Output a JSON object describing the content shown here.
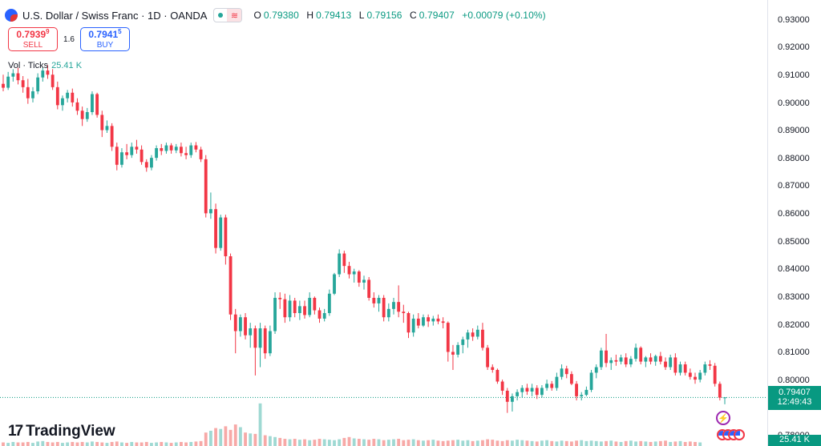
{
  "header": {
    "title": "U.S. Dollar / Swiss Franc · 1D · OANDA",
    "ohlc": [
      {
        "k": "O",
        "v": "0.79380"
      },
      {
        "k": "H",
        "v": "0.79413"
      },
      {
        "k": "L",
        "v": "0.79156"
      },
      {
        "k": "C",
        "v": "0.79407"
      }
    ],
    "change": "+0.00079 (+0.10%)"
  },
  "trade": {
    "sell_price_main": "0.7939",
    "sell_price_sup": "9",
    "sell_label": "SELL",
    "spread": "1.6",
    "buy_price_main": "0.7941",
    "buy_price_sup": "5",
    "buy_label": "BUY"
  },
  "volume": {
    "label": "Vol · Ticks",
    "value": "25.41 K"
  },
  "price_axis": {
    "ticks": [
      "0.93000",
      "0.92000",
      "0.91000",
      "0.90000",
      "0.89000",
      "0.88000",
      "0.87000",
      "0.86000",
      "0.85000",
      "0.84000",
      "0.83000",
      "0.82000",
      "0.81000",
      "0.80000",
      "0.78000"
    ],
    "last_price": "0.79407",
    "countdown": "12:49:43",
    "volume_label": "25.41 K"
  },
  "brand": {
    "name": "TradingView",
    "mark": "17"
  },
  "colors": {
    "up": "#26a69a",
    "down": "#f23645",
    "up_vol": "#9fd9d3",
    "down_vol": "#f7a9a7",
    "last_line": "#089981"
  },
  "chart_data": {
    "type": "candlestick",
    "ylim": [
      0.778,
      0.936
    ],
    "last_price": 0.79407,
    "candles": [
      {
        "o": 0.9072,
        "h": 0.9105,
        "l": 0.9045,
        "c": 0.9058
      },
      {
        "o": 0.9058,
        "h": 0.9115,
        "l": 0.905,
        "c": 0.9098
      },
      {
        "o": 0.9098,
        "h": 0.9125,
        "l": 0.908,
        "c": 0.911
      },
      {
        "o": 0.911,
        "h": 0.913,
        "l": 0.907,
        "c": 0.9085
      },
      {
        "o": 0.9085,
        "h": 0.91,
        "l": 0.904,
        "c": 0.906
      },
      {
        "o": 0.906,
        "h": 0.909,
        "l": 0.9,
        "c": 0.902
      },
      {
        "o": 0.902,
        "h": 0.906,
        "l": 0.9005,
        "c": 0.9045
      },
      {
        "o": 0.9045,
        "h": 0.911,
        "l": 0.9035,
        "c": 0.9095
      },
      {
        "o": 0.9095,
        "h": 0.913,
        "l": 0.908,
        "c": 0.912
      },
      {
        "o": 0.912,
        "h": 0.914,
        "l": 0.909,
        "c": 0.9105
      },
      {
        "o": 0.9105,
        "h": 0.9125,
        "l": 0.905,
        "c": 0.906
      },
      {
        "o": 0.906,
        "h": 0.908,
        "l": 0.898,
        "c": 0.8995
      },
      {
        "o": 0.8995,
        "h": 0.903,
        "l": 0.8975,
        "c": 0.902
      },
      {
        "o": 0.902,
        "h": 0.905,
        "l": 0.9005,
        "c": 0.904
      },
      {
        "o": 0.904,
        "h": 0.9055,
        "l": 0.899,
        "c": 0.9005
      },
      {
        "o": 0.9005,
        "h": 0.902,
        "l": 0.896,
        "c": 0.8975
      },
      {
        "o": 0.8975,
        "h": 0.899,
        "l": 0.892,
        "c": 0.8945
      },
      {
        "o": 0.8945,
        "h": 0.8985,
        "l": 0.8935,
        "c": 0.897
      },
      {
        "o": 0.897,
        "h": 0.9045,
        "l": 0.896,
        "c": 0.9035
      },
      {
        "o": 0.9035,
        "h": 0.904,
        "l": 0.895,
        "c": 0.896
      },
      {
        "o": 0.896,
        "h": 0.8975,
        "l": 0.888,
        "c": 0.8905
      },
      {
        "o": 0.8905,
        "h": 0.894,
        "l": 0.8895,
        "c": 0.892
      },
      {
        "o": 0.892,
        "h": 0.893,
        "l": 0.883,
        "c": 0.8845
      },
      {
        "o": 0.8845,
        "h": 0.886,
        "l": 0.876,
        "c": 0.878
      },
      {
        "o": 0.878,
        "h": 0.884,
        "l": 0.877,
        "c": 0.8825
      },
      {
        "o": 0.8825,
        "h": 0.8855,
        "l": 0.88,
        "c": 0.8815
      },
      {
        "o": 0.8815,
        "h": 0.886,
        "l": 0.8805,
        "c": 0.8845
      },
      {
        "o": 0.8845,
        "h": 0.887,
        "l": 0.882,
        "c": 0.8835
      },
      {
        "o": 0.8835,
        "h": 0.885,
        "l": 0.878,
        "c": 0.879
      },
      {
        "o": 0.879,
        "h": 0.88,
        "l": 0.8755,
        "c": 0.877
      },
      {
        "o": 0.877,
        "h": 0.8815,
        "l": 0.876,
        "c": 0.8805
      },
      {
        "o": 0.8805,
        "h": 0.885,
        "l": 0.8795,
        "c": 0.884
      },
      {
        "o": 0.884,
        "h": 0.8855,
        "l": 0.8815,
        "c": 0.883
      },
      {
        "o": 0.883,
        "h": 0.886,
        "l": 0.882,
        "c": 0.885
      },
      {
        "o": 0.885,
        "h": 0.8858,
        "l": 0.882,
        "c": 0.8832
      },
      {
        "o": 0.8832,
        "h": 0.8855,
        "l": 0.8822,
        "c": 0.8845
      },
      {
        "o": 0.8845,
        "h": 0.886,
        "l": 0.881,
        "c": 0.8822
      },
      {
        "o": 0.8822,
        "h": 0.8845,
        "l": 0.88,
        "c": 0.8815
      },
      {
        "o": 0.8815,
        "h": 0.886,
        "l": 0.8805,
        "c": 0.885
      },
      {
        "o": 0.885,
        "h": 0.8862,
        "l": 0.8825,
        "c": 0.8835
      },
      {
        "o": 0.8835,
        "h": 0.8845,
        "l": 0.879,
        "c": 0.88
      },
      {
        "o": 0.88,
        "h": 0.8815,
        "l": 0.859,
        "c": 0.8605
      },
      {
        "o": 0.8605,
        "h": 0.868,
        "l": 0.8585,
        "c": 0.862
      },
      {
        "o": 0.862,
        "h": 0.864,
        "l": 0.846,
        "c": 0.848
      },
      {
        "o": 0.848,
        "h": 0.86,
        "l": 0.847,
        "c": 0.859
      },
      {
        "o": 0.859,
        "h": 0.86,
        "l": 0.842,
        "c": 0.845
      },
      {
        "o": 0.845,
        "h": 0.846,
        "l": 0.822,
        "c": 0.824
      },
      {
        "o": 0.824,
        "h": 0.826,
        "l": 0.81,
        "c": 0.818
      },
      {
        "o": 0.818,
        "h": 0.824,
        "l": 0.816,
        "c": 0.823
      },
      {
        "o": 0.823,
        "h": 0.8245,
        "l": 0.815,
        "c": 0.8165
      },
      {
        "o": 0.8165,
        "h": 0.821,
        "l": 0.812,
        "c": 0.819
      },
      {
        "o": 0.819,
        "h": 0.82,
        "l": 0.802,
        "c": 0.812
      },
      {
        "o": 0.812,
        "h": 0.821,
        "l": 0.805,
        "c": 0.819
      },
      {
        "o": 0.819,
        "h": 0.82,
        "l": 0.808,
        "c": 0.81
      },
      {
        "o": 0.81,
        "h": 0.82,
        "l": 0.809,
        "c": 0.818
      },
      {
        "o": 0.818,
        "h": 0.832,
        "l": 0.817,
        "c": 0.83
      },
      {
        "o": 0.83,
        "h": 0.832,
        "l": 0.826,
        "c": 0.8295
      },
      {
        "o": 0.8295,
        "h": 0.8315,
        "l": 0.821,
        "c": 0.823
      },
      {
        "o": 0.823,
        "h": 0.831,
        "l": 0.8215,
        "c": 0.829
      },
      {
        "o": 0.829,
        "h": 0.83,
        "l": 0.823,
        "c": 0.8245
      },
      {
        "o": 0.8245,
        "h": 0.829,
        "l": 0.822,
        "c": 0.827
      },
      {
        "o": 0.827,
        "h": 0.829,
        "l": 0.8225,
        "c": 0.8238
      },
      {
        "o": 0.8238,
        "h": 0.832,
        "l": 0.823,
        "c": 0.83
      },
      {
        "o": 0.83,
        "h": 0.8305,
        "l": 0.824,
        "c": 0.8255
      },
      {
        "o": 0.8255,
        "h": 0.8265,
        "l": 0.821,
        "c": 0.8225
      },
      {
        "o": 0.8225,
        "h": 0.826,
        "l": 0.8215,
        "c": 0.8245
      },
      {
        "o": 0.8245,
        "h": 0.833,
        "l": 0.8235,
        "c": 0.8315
      },
      {
        "o": 0.8315,
        "h": 0.839,
        "l": 0.831,
        "c": 0.8385
      },
      {
        "o": 0.8385,
        "h": 0.8475,
        "l": 0.8375,
        "c": 0.846
      },
      {
        "o": 0.846,
        "h": 0.847,
        "l": 0.839,
        "c": 0.8415
      },
      {
        "o": 0.8415,
        "h": 0.843,
        "l": 0.837,
        "c": 0.8385
      },
      {
        "o": 0.8385,
        "h": 0.8405,
        "l": 0.8355,
        "c": 0.8395
      },
      {
        "o": 0.8395,
        "h": 0.84,
        "l": 0.834,
        "c": 0.8355
      },
      {
        "o": 0.8355,
        "h": 0.838,
        "l": 0.833,
        "c": 0.8365
      },
      {
        "o": 0.8365,
        "h": 0.8375,
        "l": 0.829,
        "c": 0.83
      },
      {
        "o": 0.83,
        "h": 0.832,
        "l": 0.8265,
        "c": 0.828
      },
      {
        "o": 0.828,
        "h": 0.831,
        "l": 0.825,
        "c": 0.83
      },
      {
        "o": 0.83,
        "h": 0.831,
        "l": 0.8215,
        "c": 0.823
      },
      {
        "o": 0.823,
        "h": 0.828,
        "l": 0.8215,
        "c": 0.826
      },
      {
        "o": 0.826,
        "h": 0.83,
        "l": 0.824,
        "c": 0.8285
      },
      {
        "o": 0.8285,
        "h": 0.8345,
        "l": 0.823,
        "c": 0.825
      },
      {
        "o": 0.825,
        "h": 0.8275,
        "l": 0.821,
        "c": 0.8245
      },
      {
        "o": 0.8245,
        "h": 0.825,
        "l": 0.8155,
        "c": 0.8175
      },
      {
        "o": 0.8175,
        "h": 0.824,
        "l": 0.816,
        "c": 0.8225
      },
      {
        "o": 0.8225,
        "h": 0.8245,
        "l": 0.819,
        "c": 0.82
      },
      {
        "o": 0.82,
        "h": 0.824,
        "l": 0.8195,
        "c": 0.823
      },
      {
        "o": 0.823,
        "h": 0.824,
        "l": 0.8195,
        "c": 0.8215
      },
      {
        "o": 0.8215,
        "h": 0.8235,
        "l": 0.82,
        "c": 0.8225
      },
      {
        "o": 0.8225,
        "h": 0.824,
        "l": 0.8205,
        "c": 0.8215
      },
      {
        "o": 0.8215,
        "h": 0.823,
        "l": 0.819,
        "c": 0.821
      },
      {
        "o": 0.821,
        "h": 0.8215,
        "l": 0.807,
        "c": 0.8105
      },
      {
        "o": 0.8105,
        "h": 0.813,
        "l": 0.804,
        "c": 0.8095
      },
      {
        "o": 0.8095,
        "h": 0.814,
        "l": 0.8085,
        "c": 0.813
      },
      {
        "o": 0.813,
        "h": 0.816,
        "l": 0.81,
        "c": 0.815
      },
      {
        "o": 0.815,
        "h": 0.8185,
        "l": 0.812,
        "c": 0.8175
      },
      {
        "o": 0.8175,
        "h": 0.819,
        "l": 0.8145,
        "c": 0.816
      },
      {
        "o": 0.816,
        "h": 0.82,
        "l": 0.815,
        "c": 0.8185
      },
      {
        "o": 0.8185,
        "h": 0.821,
        "l": 0.811,
        "c": 0.812
      },
      {
        "o": 0.812,
        "h": 0.813,
        "l": 0.804,
        "c": 0.805
      },
      {
        "o": 0.805,
        "h": 0.806,
        "l": 0.803,
        "c": 0.804
      },
      {
        "o": 0.804,
        "h": 0.8045,
        "l": 0.799,
        "c": 0.7998
      },
      {
        "o": 0.7998,
        "h": 0.8005,
        "l": 0.795,
        "c": 0.7965
      },
      {
        "o": 0.7965,
        "h": 0.7975,
        "l": 0.7885,
        "c": 0.7925
      },
      {
        "o": 0.7925,
        "h": 0.7955,
        "l": 0.789,
        "c": 0.7945
      },
      {
        "o": 0.7945,
        "h": 0.797,
        "l": 0.793,
        "c": 0.796
      },
      {
        "o": 0.796,
        "h": 0.7985,
        "l": 0.794,
        "c": 0.7975
      },
      {
        "o": 0.7975,
        "h": 0.799,
        "l": 0.795,
        "c": 0.7962
      },
      {
        "o": 0.7962,
        "h": 0.799,
        "l": 0.7945,
        "c": 0.7975
      },
      {
        "o": 0.7975,
        "h": 0.7985,
        "l": 0.7935,
        "c": 0.795
      },
      {
        "o": 0.795,
        "h": 0.7985,
        "l": 0.794,
        "c": 0.7975
      },
      {
        "o": 0.7975,
        "h": 0.8005,
        "l": 0.7965,
        "c": 0.799
      },
      {
        "o": 0.799,
        "h": 0.8,
        "l": 0.7965,
        "c": 0.7975
      },
      {
        "o": 0.7975,
        "h": 0.803,
        "l": 0.7965,
        "c": 0.8015
      },
      {
        "o": 0.8015,
        "h": 0.806,
        "l": 0.8005,
        "c": 0.8045
      },
      {
        "o": 0.8045,
        "h": 0.8055,
        "l": 0.801,
        "c": 0.8025
      },
      {
        "o": 0.8025,
        "h": 0.8035,
        "l": 0.7985,
        "c": 0.799
      },
      {
        "o": 0.799,
        "h": 0.8,
        "l": 0.793,
        "c": 0.7945
      },
      {
        "o": 0.7945,
        "h": 0.796,
        "l": 0.793,
        "c": 0.795
      },
      {
        "o": 0.795,
        "h": 0.798,
        "l": 0.7945,
        "c": 0.7968
      },
      {
        "o": 0.7968,
        "h": 0.804,
        "l": 0.796,
        "c": 0.803
      },
      {
        "o": 0.803,
        "h": 0.806,
        "l": 0.801,
        "c": 0.805
      },
      {
        "o": 0.805,
        "h": 0.812,
        "l": 0.804,
        "c": 0.811
      },
      {
        "o": 0.811,
        "h": 0.817,
        "l": 0.805,
        "c": 0.8065
      },
      {
        "o": 0.8065,
        "h": 0.8085,
        "l": 0.804,
        "c": 0.8075
      },
      {
        "o": 0.8075,
        "h": 0.8095,
        "l": 0.8055,
        "c": 0.807
      },
      {
        "o": 0.807,
        "h": 0.8095,
        "l": 0.806,
        "c": 0.8085
      },
      {
        "o": 0.8085,
        "h": 0.81,
        "l": 0.805,
        "c": 0.806
      },
      {
        "o": 0.806,
        "h": 0.809,
        "l": 0.805,
        "c": 0.808
      },
      {
        "o": 0.808,
        "h": 0.8135,
        "l": 0.807,
        "c": 0.812
      },
      {
        "o": 0.812,
        "h": 0.8125,
        "l": 0.806,
        "c": 0.807
      },
      {
        "o": 0.807,
        "h": 0.809,
        "l": 0.805,
        "c": 0.8085
      },
      {
        "o": 0.8085,
        "h": 0.81,
        "l": 0.806,
        "c": 0.807
      },
      {
        "o": 0.807,
        "h": 0.8095,
        "l": 0.8055,
        "c": 0.809
      },
      {
        "o": 0.809,
        "h": 0.8105,
        "l": 0.806,
        "c": 0.807
      },
      {
        "o": 0.807,
        "h": 0.8085,
        "l": 0.804,
        "c": 0.805
      },
      {
        "o": 0.805,
        "h": 0.8095,
        "l": 0.804,
        "c": 0.8085
      },
      {
        "o": 0.8085,
        "h": 0.81,
        "l": 0.802,
        "c": 0.803
      },
      {
        "o": 0.803,
        "h": 0.807,
        "l": 0.802,
        "c": 0.806
      },
      {
        "o": 0.806,
        "h": 0.807,
        "l": 0.802,
        "c": 0.803
      },
      {
        "o": 0.803,
        "h": 0.8045,
        "l": 0.8005,
        "c": 0.8015
      },
      {
        "o": 0.8015,
        "h": 0.803,
        "l": 0.799,
        "c": 0.8005
      },
      {
        "o": 0.8005,
        "h": 0.804,
        "l": 0.7995,
        "c": 0.803
      },
      {
        "o": 0.803,
        "h": 0.807,
        "l": 0.802,
        "c": 0.806
      },
      {
        "o": 0.806,
        "h": 0.8075,
        "l": 0.804,
        "c": 0.8055
      },
      {
        "o": 0.8055,
        "h": 0.8065,
        "l": 0.798,
        "c": 0.799
      },
      {
        "o": 0.799,
        "h": 0.7998,
        "l": 0.793,
        "c": 0.794
      },
      {
        "o": 0.7938,
        "h": 0.7941,
        "l": 0.7916,
        "c": 0.7941
      }
    ],
    "volumes": [
      8,
      7,
      9,
      8,
      8,
      9,
      7,
      10,
      11,
      9,
      8,
      9,
      7,
      8,
      9,
      8,
      9,
      8,
      10,
      9,
      8,
      7,
      9,
      10,
      8,
      7,
      9,
      8,
      8,
      9,
      7,
      8,
      9,
      8,
      7,
      8,
      9,
      8,
      9,
      10,
      11,
      30,
      34,
      40,
      38,
      44,
      36,
      48,
      42,
      30,
      28,
      27,
      95,
      24,
      22,
      20,
      18,
      16,
      15,
      16,
      14,
      15,
      13,
      14,
      16,
      15,
      14,
      13,
      15,
      18,
      20,
      17,
      16,
      15,
      14,
      16,
      15,
      13,
      14,
      15,
      16,
      13,
      14,
      15,
      13,
      12,
      13,
      14,
      12,
      11,
      12,
      13,
      14,
      12,
      13,
      11,
      12,
      13,
      15,
      14,
      12,
      11,
      13,
      12,
      14,
      13,
      12,
      11,
      10,
      12,
      13,
      11,
      10,
      12,
      11,
      10,
      12,
      13,
      11,
      12,
      11,
      10,
      11,
      12,
      10,
      9,
      11,
      12,
      10,
      11,
      10,
      9,
      10,
      11,
      12,
      9,
      10,
      11,
      9,
      10,
      9,
      8
    ]
  }
}
